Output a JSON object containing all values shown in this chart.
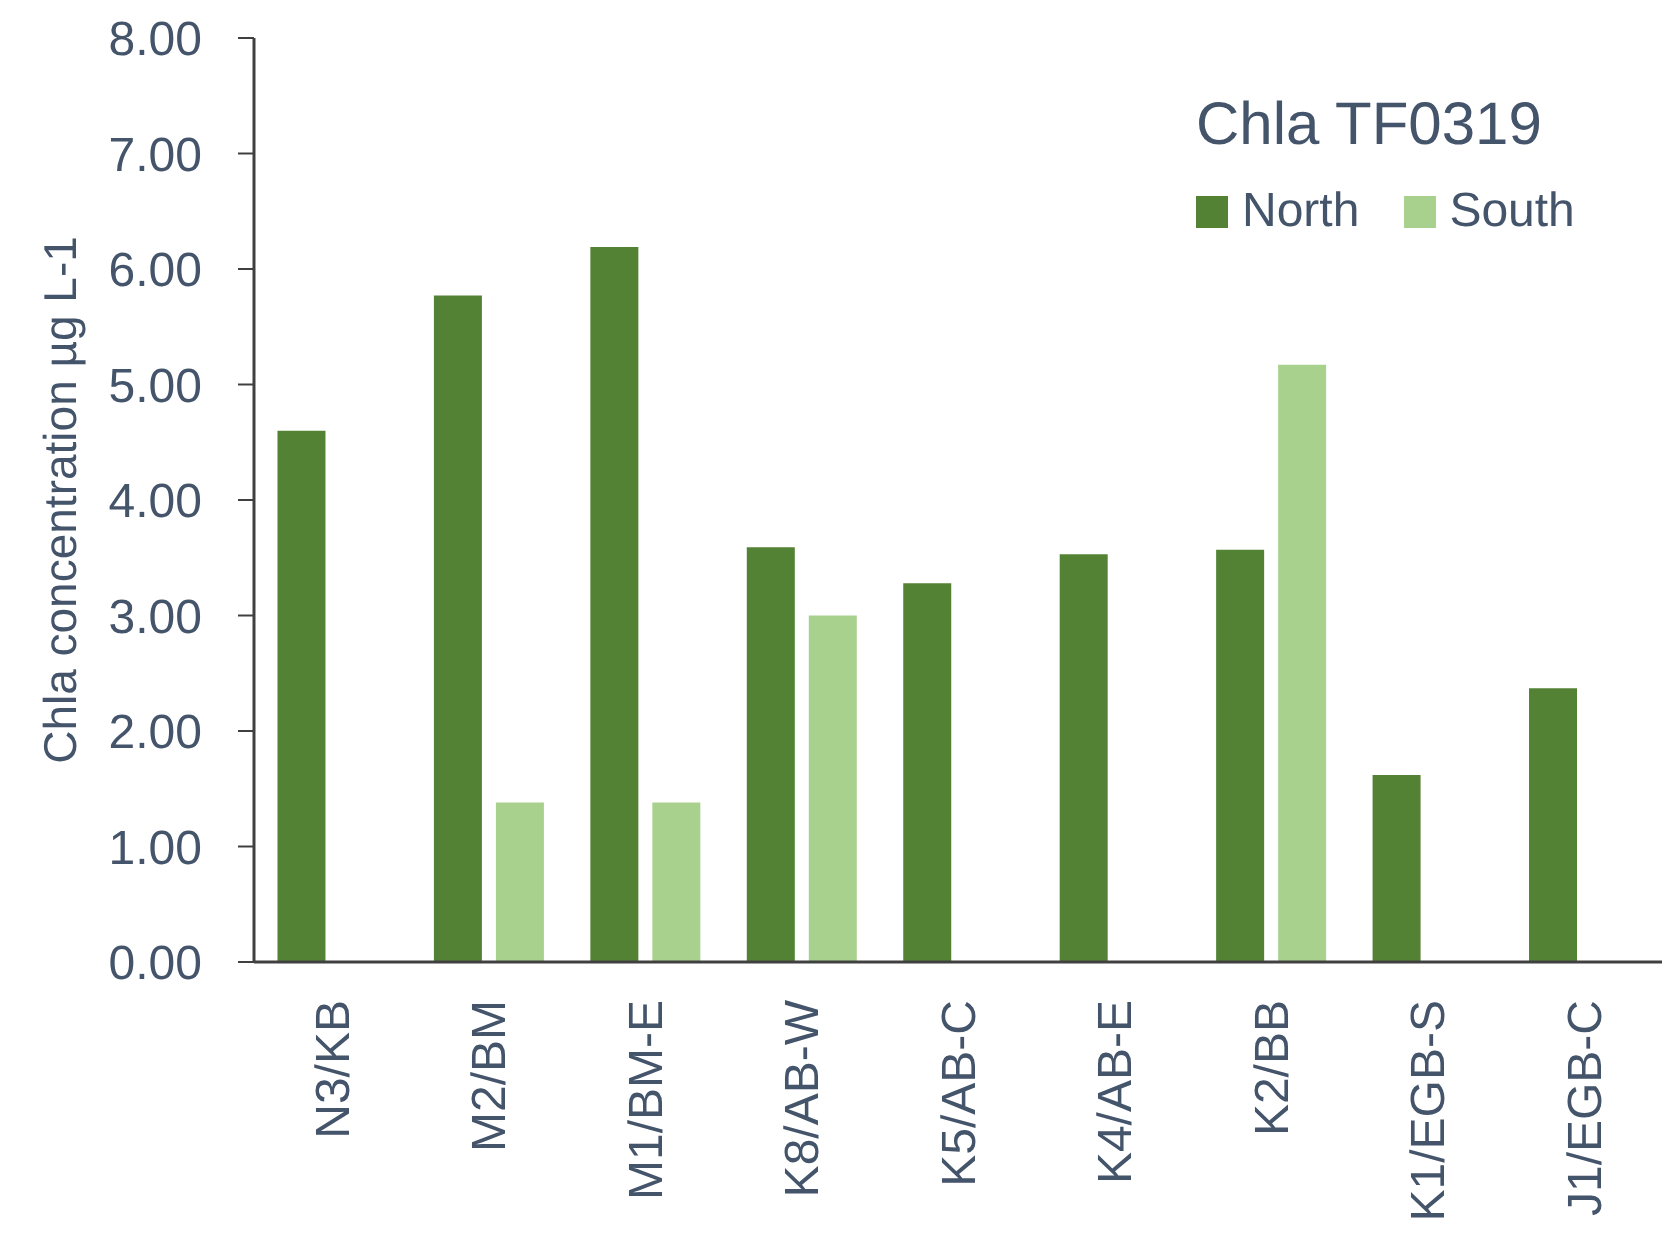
{
  "chart_data": {
    "type": "bar",
    "title": "Chla TF0319",
    "ylabel": "Chla concentration µg L-1",
    "categories": [
      "N3/KB",
      "M2/BM",
      "M1/BM-E",
      "K8/AB-W",
      "K5/AB-C",
      "K4/AB-E",
      "K2/BB",
      "K1/EGB-S",
      "J1/EGB-C"
    ],
    "series": [
      {
        "name": "North",
        "color": "#548235",
        "values": [
          4.6,
          5.77,
          6.19,
          3.59,
          3.28,
          3.53,
          3.57,
          1.62,
          2.37
        ]
      },
      {
        "name": "South",
        "color": "#a9d18e",
        "values": [
          null,
          1.38,
          1.38,
          3.0,
          null,
          null,
          5.17,
          null,
          null
        ]
      }
    ],
    "ylim": [
      0,
      8
    ],
    "yticks": [
      {
        "value": 0,
        "label": "0.00"
      },
      {
        "value": 1,
        "label": "1.00"
      },
      {
        "value": 2,
        "label": "2.00"
      },
      {
        "value": 3,
        "label": "3.00"
      },
      {
        "value": 4,
        "label": "4.00"
      },
      {
        "value": 5,
        "label": "5.00"
      },
      {
        "value": 6,
        "label": "6.00"
      },
      {
        "value": 7,
        "label": "7.00"
      },
      {
        "value": 8,
        "label": "8.00"
      }
    ],
    "legend": "top right"
  }
}
